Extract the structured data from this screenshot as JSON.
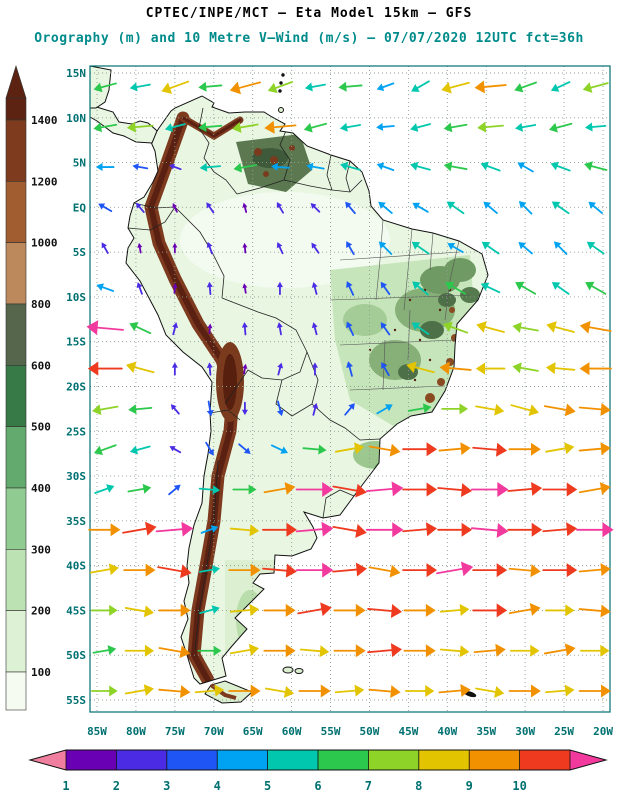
{
  "header": {
    "title1": "CPTEC/INPE/MCT –  Eta Model 15km – GFS",
    "title2": "Orography (m) and 10 Metre V–Wind (m/s) – 07/07/2020 12UTC fct=36h"
  },
  "chart_data": {
    "type": "map-vector-field",
    "title": "CPTEC/INPE/MCT – Eta Model 15km – GFS",
    "subtitle": "Orography (m) and 10 Metre V–Wind (m/s)",
    "date": "07/07/2020",
    "cycle": "12UTC",
    "forecast": "fct=36h",
    "axes": {
      "lon_ticks": [
        -85,
        -80,
        -75,
        -70,
        -65,
        -60,
        -55,
        -50,
        -45,
        -40,
        -35,
        -30,
        -25,
        -20
      ],
      "lon_labels": [
        "85W",
        "80W",
        "75W",
        "70W",
        "65W",
        "60W",
        "55W",
        "50W",
        "45W",
        "40W",
        "35W",
        "30W",
        "25W",
        "20W"
      ],
      "lat_ticks": [
        15,
        10,
        5,
        0,
        -5,
        -10,
        -15,
        -20,
        -25,
        -30,
        -35,
        -40,
        -45,
        -50,
        -55
      ],
      "lat_labels": [
        "15N",
        "10N",
        "5N",
        "EQ",
        "5S",
        "10S",
        "15S",
        "20S",
        "25S",
        "30S",
        "35S",
        "40S",
        "45S",
        "50S",
        "55S"
      ]
    },
    "orography_scale": {
      "units": "m",
      "labels_top_to_bottom": [
        "1400",
        "1200",
        "1000",
        "800",
        "600",
        "500",
        "400",
        "300",
        "200",
        "100"
      ],
      "colors_top_to_bottom": [
        "#5c2312",
        "#7e3b1e",
        "#a15c2f",
        "#bb895c",
        "#55664c",
        "#377a47",
        "#62aa6e",
        "#90cc92",
        "#bce2b4",
        "#ddf1d4",
        "#f6fbf2"
      ]
    },
    "wind_scale": {
      "units": "m/s",
      "labels": [
        "1",
        "2",
        "3",
        "4",
        "5",
        "6",
        "7",
        "8",
        "9",
        "10"
      ],
      "band_colors": [
        "#6a00b4",
        "#4b2ce4",
        "#1f55f5",
        "#00a2f2",
        "#00c7ad",
        "#2cc84d",
        "#8ed327",
        "#e3c400",
        "#f29100",
        "#ee3a1f"
      ],
      "left_arrow_color": "#f07f9f",
      "right_arrow_color": "#f23a9e"
    },
    "wind_palette": [
      "#6a00b4",
      "#4b2ce4",
      "#1f55f5",
      "#00a2f2",
      "#00c7ad",
      "#2cc84d",
      "#8ed327",
      "#e3c400",
      "#f29100",
      "#ee3a1f",
      "#f23a9e"
    ],
    "wind_field": {
      "angle_convention": "deg_ccw_from_east",
      "speed_level_convention": "1..10 = m/s bands, 11 = above 10 m/s",
      "lons": [
        -84,
        -79.5,
        -75,
        -70.5,
        -66,
        -61.5,
        -57,
        -52.5,
        -48,
        -43.5,
        -39,
        -34.5,
        -30,
        -25.5,
        -21
      ],
      "lats": [
        13.5,
        9,
        4.5,
        0,
        -4.5,
        -9,
        -13.5,
        -18,
        -22.5,
        -27,
        -31.5,
        -36,
        -40.5,
        -45,
        -49.5,
        -54
      ],
      "rows": [
        [
          [
            195,
            6
          ],
          [
            190,
            5
          ],
          [
            200,
            8
          ],
          [
            185,
            6
          ],
          [
            195,
            9
          ],
          [
            200,
            7
          ],
          [
            190,
            5
          ],
          [
            185,
            6
          ],
          [
            200,
            4
          ],
          [
            210,
            5
          ],
          [
            195,
            8
          ],
          [
            185,
            9
          ],
          [
            200,
            6
          ],
          [
            205,
            5
          ],
          [
            195,
            7
          ]
        ],
        [
          [
            190,
            6
          ],
          [
            185,
            7
          ],
          [
            195,
            5
          ],
          [
            185,
            6
          ],
          [
            190,
            7
          ],
          [
            185,
            9
          ],
          [
            195,
            6
          ],
          [
            190,
            5
          ],
          [
            185,
            4
          ],
          [
            195,
            5
          ],
          [
            190,
            6
          ],
          [
            185,
            7
          ],
          [
            190,
            5
          ],
          [
            195,
            6
          ],
          [
            185,
            5
          ]
        ],
        [
          [
            180,
            4
          ],
          [
            170,
            3
          ],
          [
            160,
            2
          ],
          [
            185,
            5
          ],
          [
            190,
            6
          ],
          [
            175,
            4
          ],
          [
            170,
            4
          ],
          [
            165,
            5
          ],
          [
            160,
            4
          ],
          [
            165,
            5
          ],
          [
            170,
            6
          ],
          [
            160,
            5
          ],
          [
            150,
            4
          ],
          [
            160,
            5
          ],
          [
            165,
            6
          ]
        ],
        [
          [
            150,
            3
          ],
          [
            130,
            2
          ],
          [
            115,
            1
          ],
          [
            125,
            2
          ],
          [
            105,
            1
          ],
          [
            120,
            2
          ],
          [
            135,
            2
          ],
          [
            130,
            3
          ],
          [
            140,
            4
          ],
          [
            150,
            4
          ],
          [
            145,
            5
          ],
          [
            140,
            4
          ],
          [
            135,
            4
          ],
          [
            145,
            5
          ],
          [
            140,
            4
          ]
        ],
        [
          [
            120,
            2
          ],
          [
            100,
            1
          ],
          [
            90,
            1
          ],
          [
            110,
            2
          ],
          [
            95,
            1
          ],
          [
            115,
            2
          ],
          [
            125,
            2
          ],
          [
            120,
            3
          ],
          [
            135,
            4
          ],
          [
            145,
            5
          ],
          [
            150,
            4
          ],
          [
            145,
            5
          ],
          [
            140,
            4
          ],
          [
            135,
            4
          ],
          [
            145,
            5
          ]
        ],
        [
          [
            160,
            4
          ],
          [
            110,
            2
          ],
          [
            85,
            1
          ],
          [
            95,
            2
          ],
          [
            100,
            1
          ],
          [
            90,
            2
          ],
          [
            105,
            2
          ],
          [
            115,
            3
          ],
          [
            125,
            3
          ],
          [
            140,
            5
          ],
          [
            150,
            6
          ],
          [
            155,
            5
          ],
          [
            150,
            6
          ],
          [
            145,
            5
          ],
          [
            150,
            6
          ]
        ],
        [
          [
            175,
            11
          ],
          [
            155,
            6
          ],
          [
            75,
            2
          ],
          [
            85,
            1
          ],
          [
            95,
            2
          ],
          [
            100,
            2
          ],
          [
            105,
            2
          ],
          [
            115,
            3
          ],
          [
            125,
            3
          ],
          [
            145,
            5
          ],
          [
            160,
            7
          ],
          [
            165,
            8
          ],
          [
            170,
            7
          ],
          [
            165,
            8
          ],
          [
            170,
            9
          ]
        ],
        [
          [
            180,
            10
          ],
          [
            165,
            8
          ],
          [
            90,
            2
          ],
          [
            95,
            2
          ],
          [
            80,
            1
          ],
          [
            75,
            2
          ],
          [
            90,
            2
          ],
          [
            105,
            3
          ],
          [
            120,
            3
          ],
          [
            165,
            8
          ],
          [
            175,
            9
          ],
          [
            180,
            8
          ],
          [
            170,
            7
          ],
          [
            175,
            8
          ],
          [
            180,
            9
          ]
        ],
        [
          [
            190,
            7
          ],
          [
            185,
            6
          ],
          [
            130,
            2
          ],
          [
            280,
            3
          ],
          [
            270,
            2
          ],
          [
            285,
            3
          ],
          [
            75,
            2
          ],
          [
            50,
            3
          ],
          [
            30,
            4
          ],
          [
            10,
            6
          ],
          [
            0,
            7
          ],
          [
            350,
            8
          ],
          [
            345,
            8
          ],
          [
            350,
            9
          ],
          [
            355,
            9
          ]
        ],
        [
          [
            200,
            6
          ],
          [
            195,
            5
          ],
          [
            150,
            2
          ],
          [
            300,
            3
          ],
          [
            320,
            3
          ],
          [
            335,
            4
          ],
          [
            355,
            6
          ],
          [
            10,
            8
          ],
          [
            350,
            9
          ],
          [
            0,
            10
          ],
          [
            5,
            9
          ],
          [
            355,
            10
          ],
          [
            0,
            9
          ],
          [
            10,
            8
          ],
          [
            5,
            9
          ]
        ],
        [
          [
            20,
            5
          ],
          [
            10,
            6
          ],
          [
            40,
            3
          ],
          [
            355,
            5
          ],
          [
            0,
            6
          ],
          [
            10,
            9
          ],
          [
            0,
            11
          ],
          [
            350,
            10
          ],
          [
            5,
            11
          ],
          [
            0,
            10
          ],
          [
            355,
            10
          ],
          [
            0,
            11
          ],
          [
            5,
            10
          ],
          [
            0,
            10
          ],
          [
            10,
            9
          ]
        ],
        [
          [
            0,
            9
          ],
          [
            10,
            10
          ],
          [
            5,
            11
          ],
          [
            20,
            4
          ],
          [
            355,
            8
          ],
          [
            0,
            10
          ],
          [
            5,
            11
          ],
          [
            350,
            10
          ],
          [
            0,
            11
          ],
          [
            5,
            10
          ],
          [
            0,
            10
          ],
          [
            355,
            11
          ],
          [
            0,
            10
          ],
          [
            5,
            10
          ],
          [
            0,
            11
          ]
        ],
        [
          [
            10,
            8
          ],
          [
            0,
            9
          ],
          [
            350,
            10
          ],
          [
            10,
            5
          ],
          [
            0,
            9
          ],
          [
            355,
            10
          ],
          [
            0,
            11
          ],
          [
            5,
            10
          ],
          [
            350,
            9
          ],
          [
            0,
            10
          ],
          [
            10,
            11
          ],
          [
            0,
            10
          ],
          [
            355,
            9
          ],
          [
            0,
            10
          ],
          [
            5,
            9
          ]
        ],
        [
          [
            0,
            7
          ],
          [
            350,
            8
          ],
          [
            0,
            9
          ],
          [
            15,
            5
          ],
          [
            5,
            8
          ],
          [
            0,
            9
          ],
          [
            10,
            10
          ],
          [
            0,
            9
          ],
          [
            355,
            10
          ],
          [
            0,
            9
          ],
          [
            5,
            8
          ],
          [
            0,
            10
          ],
          [
            10,
            9
          ],
          [
            0,
            8
          ],
          [
            355,
            9
          ]
        ],
        [
          [
            10,
            6
          ],
          [
            0,
            8
          ],
          [
            350,
            9
          ],
          [
            0,
            6
          ],
          [
            10,
            8
          ],
          [
            0,
            9
          ],
          [
            355,
            8
          ],
          [
            0,
            9
          ],
          [
            5,
            10
          ],
          [
            0,
            9
          ],
          [
            355,
            8
          ],
          [
            5,
            9
          ],
          [
            0,
            8
          ],
          [
            10,
            9
          ],
          [
            0,
            8
          ]
        ],
        [
          [
            0,
            7
          ],
          [
            10,
            8
          ],
          [
            355,
            9
          ],
          [
            5,
            8
          ],
          [
            0,
            9
          ],
          [
            350,
            8
          ],
          [
            0,
            9
          ],
          [
            5,
            8
          ],
          [
            355,
            9
          ],
          [
            0,
            8
          ],
          [
            5,
            9
          ],
          [
            350,
            8
          ],
          [
            0,
            9
          ],
          [
            5,
            8
          ],
          [
            0,
            9
          ]
        ]
      ]
    },
    "style_colors": {
      "axis_label": "#007070",
      "frame": "#007070",
      "grid": "#8f9f8f",
      "coast": "#111111",
      "land_base": "#e8f6e2"
    }
  }
}
